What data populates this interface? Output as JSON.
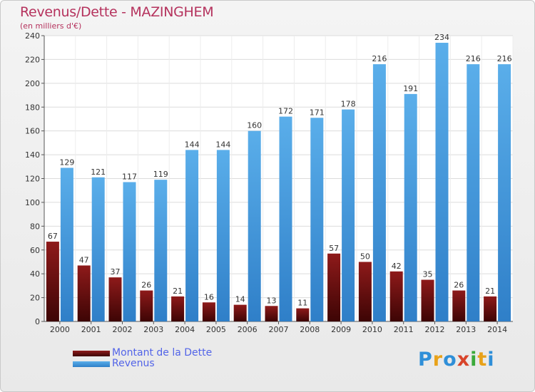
{
  "chart_data": {
    "type": "bar",
    "title": "Revenus/Dette - MAZINGHEM",
    "subtitle": "(en milliers d'€)",
    "categories": [
      "2000",
      "2001",
      "2002",
      "2003",
      "2004",
      "2005",
      "2006",
      "2007",
      "2008",
      "2009",
      "2010",
      "2011",
      "2012",
      "2013",
      "2014"
    ],
    "series": [
      {
        "name": "Montant de la Dette",
        "color": "#7a1010",
        "values": [
          67,
          47,
          37,
          26,
          21,
          16,
          14,
          13,
          11,
          57,
          50,
          42,
          35,
          26,
          21
        ]
      },
      {
        "name": "Revenus",
        "color": "#3f95dc",
        "values": [
          129,
          121,
          117,
          119,
          144,
          144,
          160,
          172,
          171,
          178,
          216,
          191,
          234,
          216,
          216
        ]
      }
    ],
    "ylim": [
      0,
      240
    ],
    "yticks": [
      0,
      20,
      40,
      60,
      80,
      100,
      120,
      140,
      160,
      180,
      200,
      220,
      240
    ],
    "grid": true,
    "legend_position": "bottom-left"
  },
  "logo": {
    "letters": [
      "P",
      "r",
      "o",
      "x",
      "i",
      "t",
      "i"
    ],
    "colors": [
      "#2f8fd8",
      "#e8a21a",
      "#2f8fd8",
      "#d8442a",
      "#3aaa3a",
      "#e8a21a",
      "#2f8fd8"
    ]
  }
}
